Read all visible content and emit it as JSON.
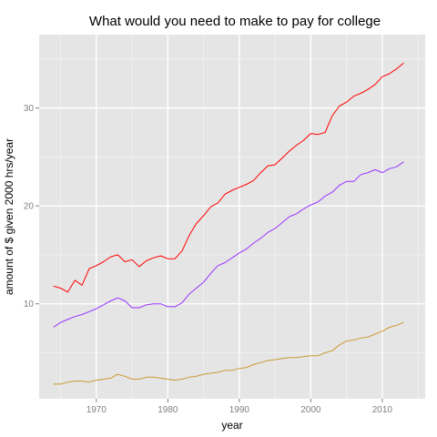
{
  "chart_data": {
    "type": "line",
    "title": "What would you need to make to pay for college",
    "xlabel": "year",
    "ylabel": "amount of $ given 2000 hrs/year",
    "xlim": [
      1962,
      2016
    ],
    "ylim": [
      0.3,
      37.5
    ],
    "x_ticks": [
      1970,
      1980,
      1990,
      2000,
      2010
    ],
    "y_ticks": [
      10,
      20,
      30
    ],
    "legend": "none",
    "grid": true,
    "colors": {
      "panel": "#e5e5e5",
      "grid_major": "#ffffff",
      "grid_minor": "#f2f2f2",
      "tick_label": "#7f7f7f"
    },
    "series": [
      {
        "color": "#ff0000",
        "x": [
          1964,
          1965,
          1966,
          1967,
          1968,
          1969,
          1970,
          1971,
          1972,
          1973,
          1974,
          1975,
          1976,
          1977,
          1978,
          1979,
          1980,
          1981,
          1982,
          1983,
          1984,
          1985,
          1986,
          1987,
          1988,
          1989,
          1990,
          1991,
          1992,
          1993,
          1994,
          1995,
          1996,
          1997,
          1998,
          1999,
          2000,
          2001,
          2002,
          2003,
          2004,
          2005,
          2006,
          2007,
          2008,
          2009,
          2010,
          2011,
          2012,
          2013
        ],
        "y": [
          11.8,
          11.6,
          11.2,
          12.4,
          11.9,
          13.6,
          13.9,
          14.3,
          14.8,
          15.0,
          14.3,
          14.5,
          13.8,
          14.4,
          14.7,
          14.9,
          14.6,
          14.6,
          15.4,
          17.0,
          18.2,
          19.0,
          19.9,
          20.3,
          21.2,
          21.6,
          21.9,
          22.2,
          22.6,
          23.4,
          24.1,
          24.2,
          24.9,
          25.6,
          26.2,
          26.7,
          27.4,
          27.3,
          27.5,
          29.2,
          30.2,
          30.6,
          31.2,
          31.5,
          31.9,
          32.4,
          33.2,
          33.5,
          34.0,
          34.6
        ]
      },
      {
        "color": "#9933ff",
        "x": [
          1964,
          1965,
          1966,
          1967,
          1968,
          1969,
          1970,
          1971,
          1972,
          1973,
          1974,
          1975,
          1976,
          1977,
          1978,
          1979,
          1980,
          1981,
          1982,
          1983,
          1984,
          1985,
          1986,
          1987,
          1988,
          1989,
          1990,
          1991,
          1992,
          1993,
          1994,
          1995,
          1996,
          1997,
          1998,
          1999,
          2000,
          2001,
          2002,
          2003,
          2004,
          2005,
          2006,
          2007,
          2008,
          2009,
          2010,
          2011,
          2012,
          2013
        ],
        "y": [
          7.6,
          8.1,
          8.4,
          8.7,
          8.9,
          9.2,
          9.5,
          9.9,
          10.3,
          10.6,
          10.3,
          9.6,
          9.6,
          9.9,
          10.0,
          10.0,
          9.7,
          9.7,
          10.1,
          11.0,
          11.6,
          12.2,
          13.1,
          13.9,
          14.2,
          14.7,
          15.2,
          15.6,
          16.2,
          16.7,
          17.3,
          17.7,
          18.3,
          18.9,
          19.2,
          19.7,
          20.1,
          20.4,
          21.0,
          21.4,
          22.1,
          22.5,
          22.5,
          23.2,
          23.4,
          23.7,
          23.4,
          23.8,
          24.0,
          24.5
        ]
      },
      {
        "color": "#cc9933",
        "x": [
          1964,
          1965,
          1966,
          1967,
          1968,
          1969,
          1970,
          1971,
          1972,
          1973,
          1974,
          1975,
          1976,
          1977,
          1978,
          1979,
          1980,
          1981,
          1982,
          1983,
          1984,
          1985,
          1986,
          1987,
          1988,
          1989,
          1990,
          1991,
          1992,
          1993,
          1994,
          1995,
          1996,
          1997,
          1998,
          1999,
          2000,
          2001,
          2002,
          2003,
          2004,
          2005,
          2006,
          2007,
          2008,
          2009,
          2010,
          2011,
          2012,
          2013
        ],
        "y": [
          1.8,
          1.8,
          2.0,
          2.1,
          2.1,
          2.0,
          2.2,
          2.3,
          2.4,
          2.8,
          2.6,
          2.3,
          2.3,
          2.5,
          2.5,
          2.4,
          2.3,
          2.2,
          2.3,
          2.5,
          2.6,
          2.8,
          2.9,
          3.0,
          3.2,
          3.2,
          3.4,
          3.5,
          3.8,
          4.0,
          4.2,
          4.3,
          4.4,
          4.5,
          4.5,
          4.6,
          4.7,
          4.7,
          5.0,
          5.2,
          5.8,
          6.2,
          6.3,
          6.5,
          6.6,
          6.9,
          7.2,
          7.6,
          7.8,
          8.1
        ]
      }
    ]
  }
}
